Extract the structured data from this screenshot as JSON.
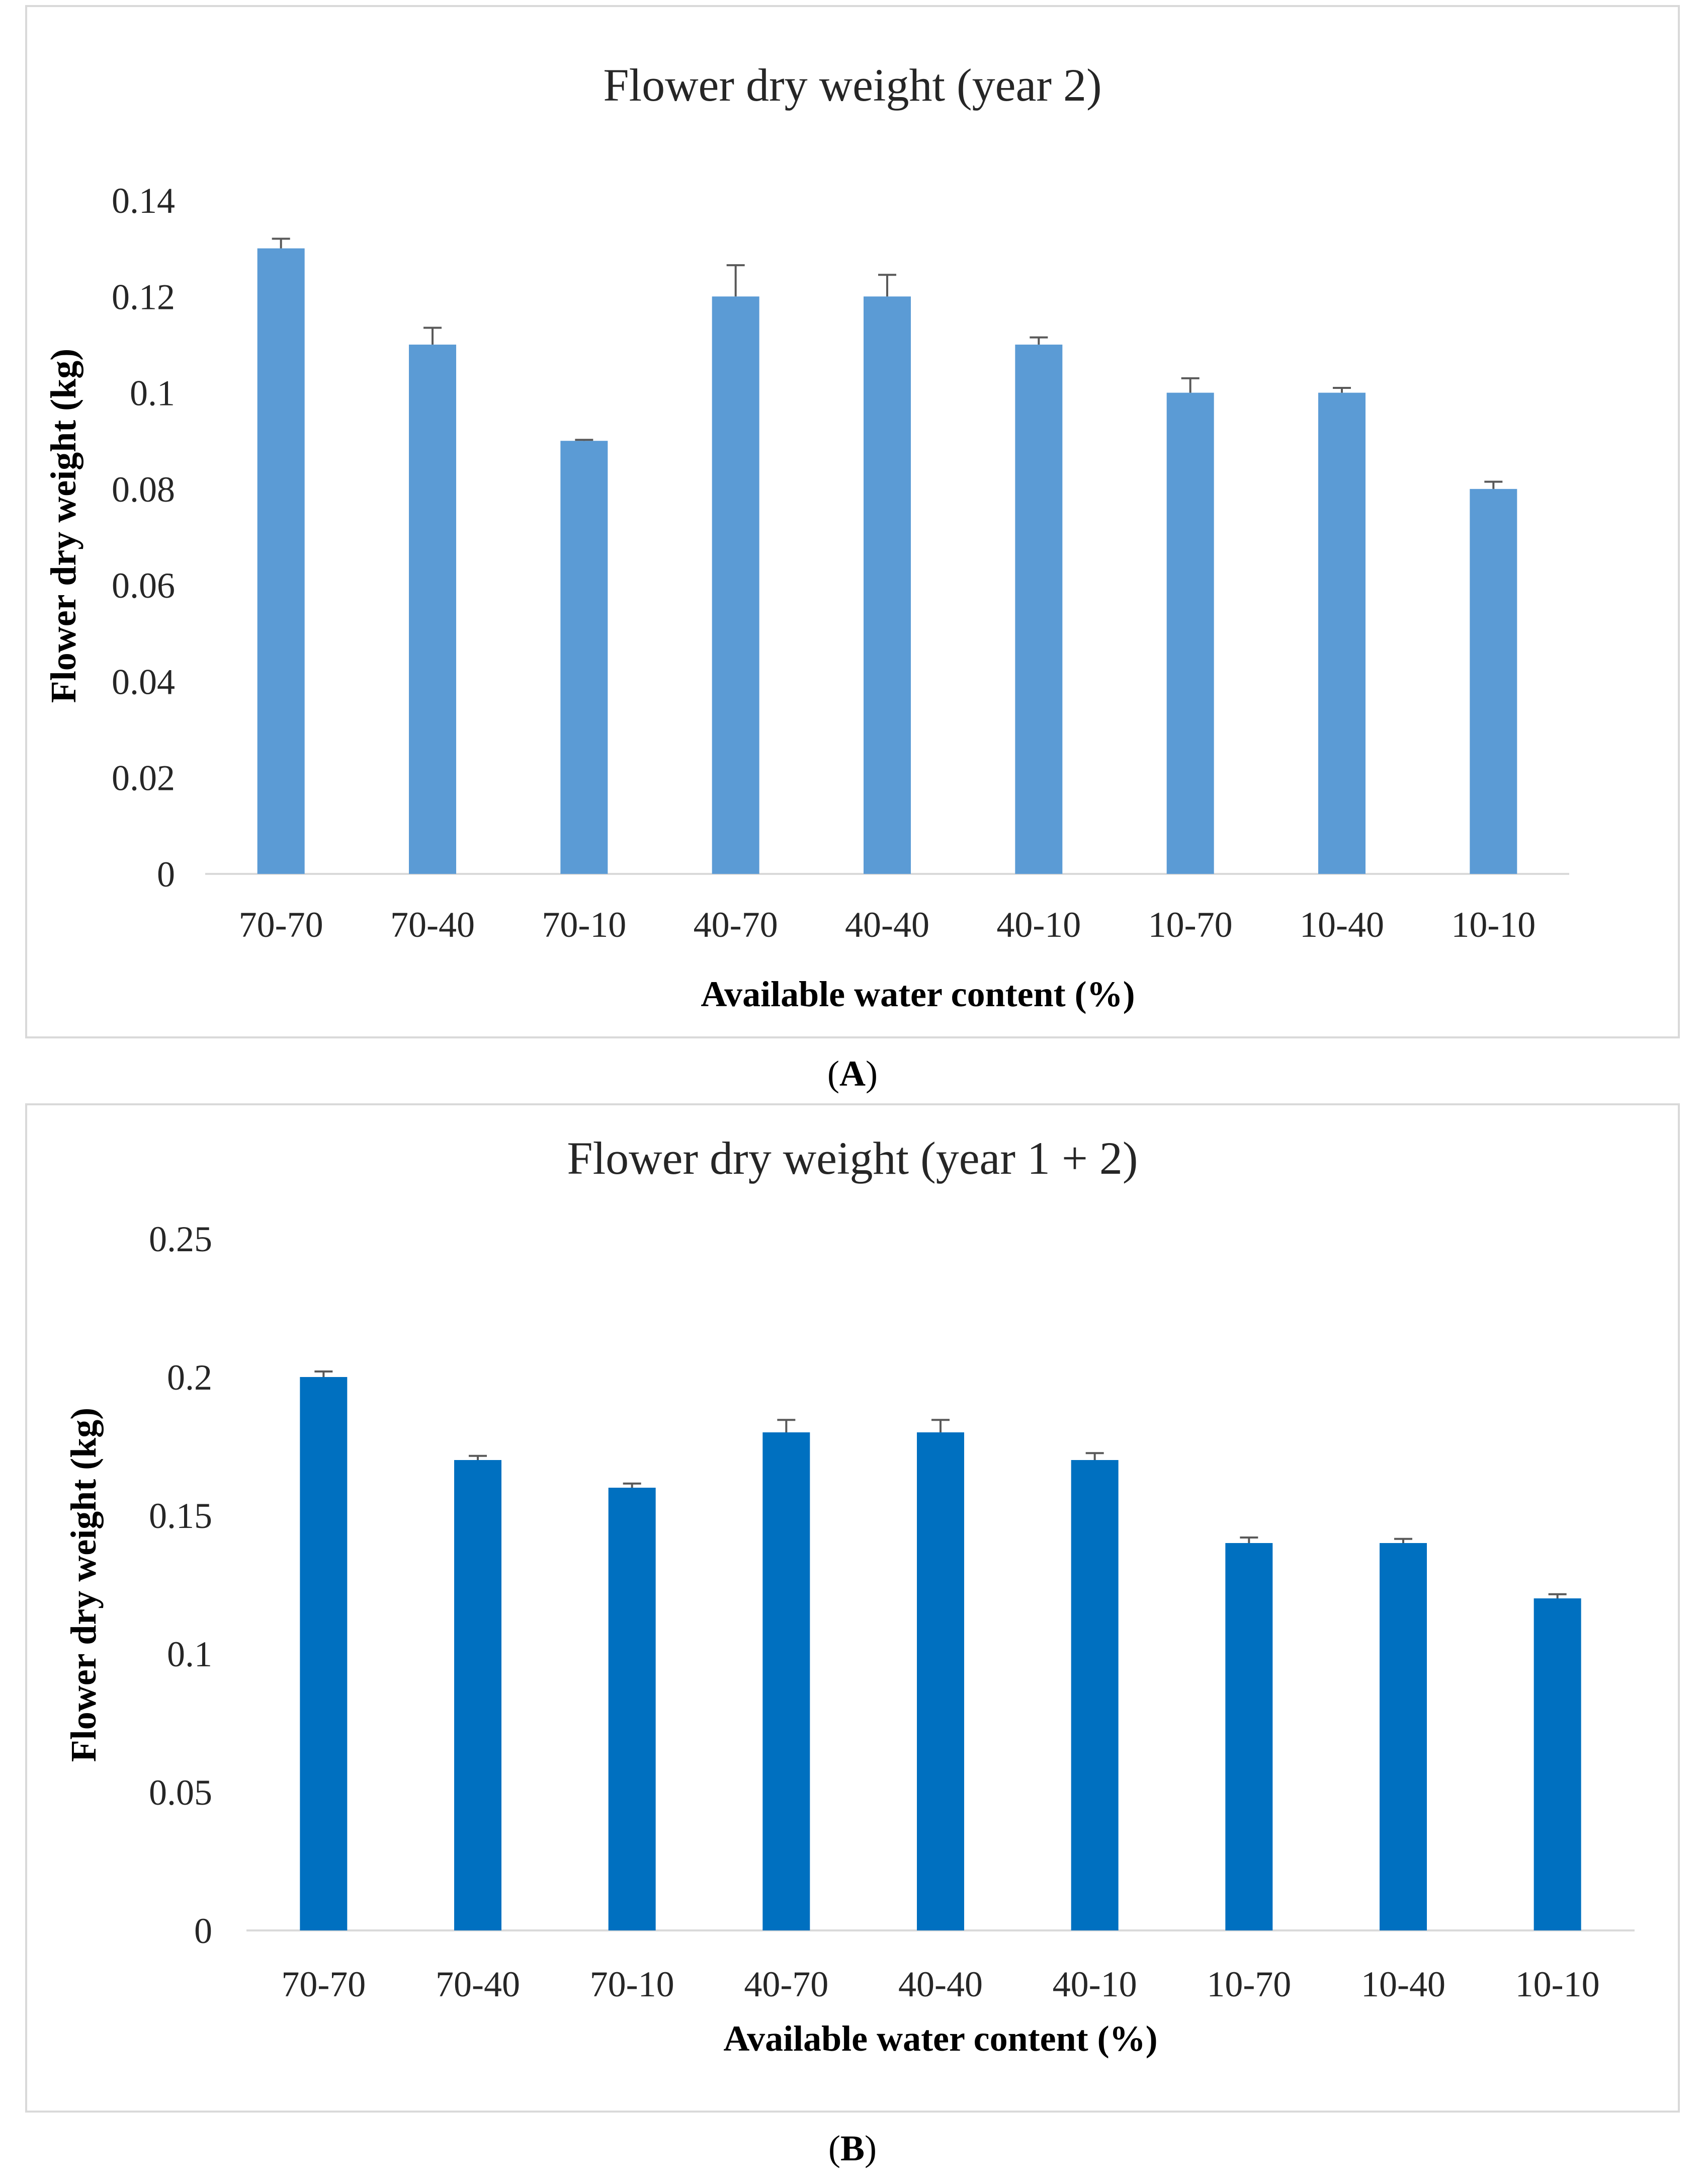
{
  "chart_data": [
    {
      "type": "bar",
      "title": "Flower dry weight (year 2)",
      "xlabel": "Available water content (%)",
      "ylabel": "Flower dry weight (kg)",
      "categories": [
        "70-70",
        "70-40",
        "70-10",
        "40-70",
        "40-40",
        "40-10",
        "10-70",
        "10-40",
        "10-10"
      ],
      "values": [
        0.13,
        0.11,
        0.09,
        0.12,
        0.12,
        0.11,
        0.1,
        0.1,
        0.08
      ],
      "error_upper": [
        0.002,
        0.0035,
        0.0002,
        0.0065,
        0.0045,
        0.0015,
        0.003,
        0.001,
        0.0015
      ],
      "ylim": [
        0,
        0.14
      ],
      "yticks": [
        0,
        0.02,
        0.04,
        0.06,
        0.08,
        0.1,
        0.12,
        0.14
      ],
      "ytick_labels": [
        "0",
        "0.02",
        "0.04",
        "0.06",
        "0.08",
        "0.1",
        "0.12",
        "0.14"
      ],
      "color": "#5b9bd5",
      "caption": {
        "open": "(",
        "letter": "A",
        "close": ")"
      }
    },
    {
      "type": "bar",
      "title": "Flower dry weight (year 1 + 2)",
      "xlabel": "Available water content (%)",
      "ylabel": "Flower dry weight (kg)",
      "categories": [
        "70-70",
        "70-40",
        "70-10",
        "40-70",
        "40-40",
        "40-10",
        "10-70",
        "10-40",
        "10-10"
      ],
      "values": [
        0.2,
        0.17,
        0.16,
        0.18,
        0.18,
        0.17,
        0.14,
        0.14,
        0.12
      ],
      "error_upper": [
        0.002,
        0.0015,
        0.0015,
        0.0045,
        0.0045,
        0.0025,
        0.002,
        0.0015,
        0.0015
      ],
      "ylim": [
        0,
        0.25
      ],
      "yticks": [
        0,
        0.05,
        0.1,
        0.15,
        0.2,
        0.25
      ],
      "ytick_labels": [
        "0",
        "0.05",
        "0.1",
        "0.15",
        "0.2",
        "0.25"
      ],
      "color": "#0070c0",
      "caption": {
        "open": "(",
        "letter": "B",
        "close": ")"
      }
    }
  ],
  "colors": {
    "frame": "#d9d9d9",
    "axis": "#d9d9d9",
    "errorbar": "#595959"
  }
}
